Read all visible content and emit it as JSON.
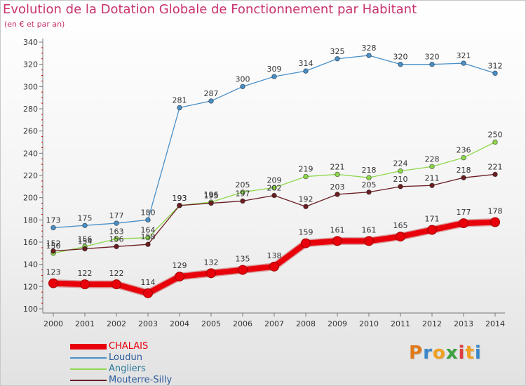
{
  "header": {
    "title": "Evolution de la Dotation Globale de Fonctionnement par Habitant",
    "subtitle": "(en € et par an)"
  },
  "logo": {
    "letters": [
      "P",
      "r",
      "o",
      "x",
      "i",
      "t",
      "i"
    ],
    "colors": [
      "#e07b1a",
      "#3a86c8",
      "#f0a020",
      "#3aa040",
      "#e03c3c",
      "#f0a020",
      "#3a86c8"
    ]
  },
  "chart_data": {
    "type": "line",
    "title": "Evolution de la Dotation Globale de Fonctionnement par Habitant",
    "subtitle": "(en € et par an)",
    "categories": [
      "2000",
      "2001",
      "2002",
      "2003",
      "2004",
      "2005",
      "2006",
      "2007",
      "2008",
      "2009",
      "2010",
      "2011",
      "2012",
      "2013",
      "2014"
    ],
    "ylim": [
      100,
      340
    ],
    "yticks": [
      100,
      120,
      140,
      160,
      180,
      200,
      220,
      240,
      260,
      280,
      300,
      320,
      340
    ],
    "grid": false,
    "legend_position": "bottom-left",
    "series": [
      {
        "name": "CHALAIS",
        "color": "#e8000b",
        "values": [
          123,
          122,
          122,
          114,
          129,
          132,
          135,
          138,
          159,
          161,
          161,
          165,
          171,
          177,
          178
        ]
      },
      {
        "name": "Loudun",
        "color": "#4a90c8",
        "values": [
          173,
          175,
          177,
          180,
          281,
          287,
          300,
          309,
          314,
          325,
          328,
          320,
          320,
          321,
          312
        ]
      },
      {
        "name": "Angliers",
        "color": "#8ed84e",
        "values": [
          150,
          156,
          163,
          164,
          193,
          196,
          205,
          209,
          219,
          221,
          218,
          224,
          228,
          236,
          250
        ]
      },
      {
        "name": "Mouterre-Silly",
        "color": "#6b1e22",
        "values": [
          152,
          154,
          156,
          158,
          193,
          195,
          197,
          202,
          192,
          203,
          205,
          210,
          211,
          218,
          221
        ]
      }
    ]
  }
}
